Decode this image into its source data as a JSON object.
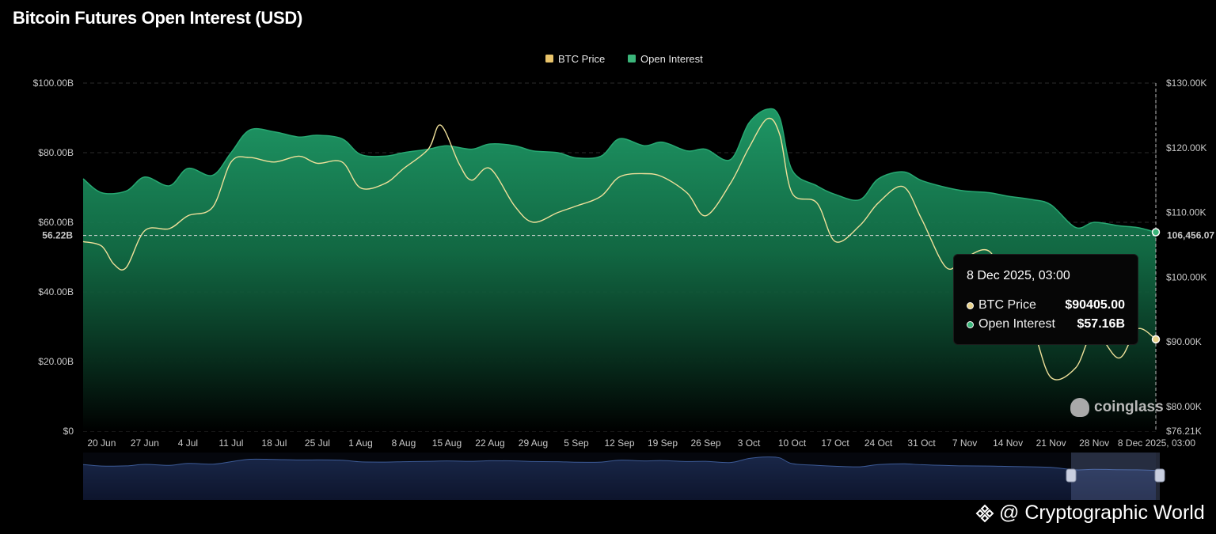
{
  "title": "Bitcoin Futures Open Interest (USD)",
  "legend": [
    {
      "label": "BTC Price",
      "color": "#e9c46a"
    },
    {
      "label": "Open Interest",
      "color": "#3bb57a"
    }
  ],
  "colors": {
    "background": "#000000",
    "oi_fill_top": "#1f9a67",
    "price_line": "#efe09a",
    "grid": "#2a2a2a"
  },
  "chart_data": {
    "type": "area",
    "title": "Bitcoin Futures Open Interest (USD)",
    "grid": true,
    "legend_position": "top-center",
    "x_ticks": [
      "20 Jun",
      "27 Jun",
      "4 Jul",
      "11 Jul",
      "18 Jul",
      "25 Jul",
      "1 Aug",
      "8 Aug",
      "15 Aug",
      "22 Aug",
      "29 Aug",
      "5 Sep",
      "12 Sep",
      "19 Sep",
      "26 Sep",
      "3 Oct",
      "10 Oct",
      "17 Oct",
      "24 Oct",
      "31 Oct",
      "7 Nov",
      "14 Nov",
      "21 Nov",
      "28 Nov"
    ],
    "x_range": [
      "2025-06-17",
      "2025-12-08"
    ],
    "y_left": {
      "ticks": [
        "$0",
        "$20.00B",
        "$40.00B",
        "$60.00B",
        "$80.00B",
        "$100.00B"
      ],
      "range": [
        0,
        100
      ],
      "unit": "B"
    },
    "y_right": {
      "ticks": [
        "$76.21K",
        "$80.00K",
        "$90.00K",
        "$100.00K",
        "$110.00K",
        "$120.00K",
        "$130.00K"
      ],
      "range": [
        76.21,
        130
      ],
      "unit": "K"
    },
    "crosshair": {
      "x_label": "8 Dec 2025, 03:00",
      "left_label": "56.22B",
      "right_label": "106,456.07",
      "left_value": 56.22,
      "right_value": 106.456
    },
    "series": [
      {
        "name": "Open Interest",
        "axis": "left",
        "x": [
          "2025-06-17",
          "2025-06-20",
          "2025-06-24",
          "2025-06-27",
          "2025-07-01",
          "2025-07-04",
          "2025-07-08",
          "2025-07-11",
          "2025-07-14",
          "2025-07-18",
          "2025-07-22",
          "2025-07-25",
          "2025-07-29",
          "2025-08-01",
          "2025-08-05",
          "2025-08-08",
          "2025-08-12",
          "2025-08-15",
          "2025-08-19",
          "2025-08-22",
          "2025-08-26",
          "2025-08-29",
          "2025-09-02",
          "2025-09-05",
          "2025-09-09",
          "2025-09-12",
          "2025-09-16",
          "2025-09-19",
          "2025-09-23",
          "2025-09-26",
          "2025-09-30",
          "2025-10-03",
          "2025-10-06",
          "2025-10-08",
          "2025-10-10",
          "2025-10-14",
          "2025-10-17",
          "2025-10-21",
          "2025-10-24",
          "2025-10-28",
          "2025-10-31",
          "2025-11-04",
          "2025-11-07",
          "2025-11-11",
          "2025-11-14",
          "2025-11-18",
          "2025-11-21",
          "2025-11-25",
          "2025-11-28",
          "2025-12-02",
          "2025-12-05",
          "2025-12-08"
        ],
        "values": [
          72.5,
          68.5,
          69.0,
          73.0,
          70.5,
          75.5,
          73.5,
          80.0,
          86.5,
          86.0,
          84.5,
          85.0,
          84.0,
          79.5,
          79.0,
          80.0,
          81.0,
          82.0,
          81.0,
          82.5,
          82.0,
          80.5,
          80.0,
          78.5,
          79.0,
          84.0,
          82.0,
          83.0,
          80.5,
          81.0,
          78.0,
          88.5,
          92.5,
          90.0,
          75.0,
          70.5,
          68.0,
          66.5,
          72.5,
          74.5,
          72.0,
          70.0,
          69.0,
          68.5,
          67.5,
          66.5,
          65.0,
          58.5,
          60.0,
          59.0,
          58.5,
          57.16
        ]
      },
      {
        "name": "BTC Price",
        "axis": "right",
        "x": [
          "2025-06-17",
          "2025-06-20",
          "2025-06-22",
          "2025-06-24",
          "2025-06-27",
          "2025-07-01",
          "2025-07-04",
          "2025-07-08",
          "2025-07-11",
          "2025-07-14",
          "2025-07-18",
          "2025-07-22",
          "2025-07-25",
          "2025-07-29",
          "2025-08-01",
          "2025-08-05",
          "2025-08-08",
          "2025-08-12",
          "2025-08-14",
          "2025-08-17",
          "2025-08-19",
          "2025-08-22",
          "2025-08-26",
          "2025-08-29",
          "2025-09-02",
          "2025-09-05",
          "2025-09-09",
          "2025-09-12",
          "2025-09-16",
          "2025-09-19",
          "2025-09-23",
          "2025-09-26",
          "2025-09-30",
          "2025-10-03",
          "2025-10-06",
          "2025-10-08",
          "2025-10-10",
          "2025-10-14",
          "2025-10-17",
          "2025-10-21",
          "2025-10-24",
          "2025-10-28",
          "2025-10-31",
          "2025-11-04",
          "2025-11-07",
          "2025-11-11",
          "2025-11-14",
          "2025-11-18",
          "2025-11-21",
          "2025-11-25",
          "2025-11-28",
          "2025-12-02",
          "2025-12-05",
          "2025-12-08"
        ],
        "values": [
          105.5,
          104.8,
          102.0,
          101.5,
          107.2,
          107.5,
          109.5,
          110.8,
          117.8,
          118.5,
          117.8,
          118.7,
          117.6,
          117.8,
          113.8,
          114.5,
          116.8,
          119.8,
          123.5,
          117.5,
          115.0,
          116.8,
          111.0,
          108.5,
          110.0,
          111.0,
          112.5,
          115.5,
          116.0,
          115.5,
          113.0,
          109.5,
          114.5,
          120.0,
          124.5,
          122.0,
          113.0,
          111.5,
          105.5,
          108.0,
          111.5,
          114.0,
          109.0,
          101.5,
          103.0,
          104.0,
          98.0,
          92.0,
          84.5,
          86.0,
          91.5,
          87.5,
          92.0,
          90.4
        ]
      }
    ],
    "tooltip": {
      "date": "8 Dec 2025, 03:00",
      "rows": [
        {
          "label": "BTC Price",
          "value": "$90405.00"
        },
        {
          "label": "Open Interest",
          "value": "$57.16B"
        }
      ]
    }
  },
  "brand": "coinglass",
  "watermark": {
    "text": "@ Cryptographic World",
    "logo_icon": "binance-diamond-icon"
  }
}
